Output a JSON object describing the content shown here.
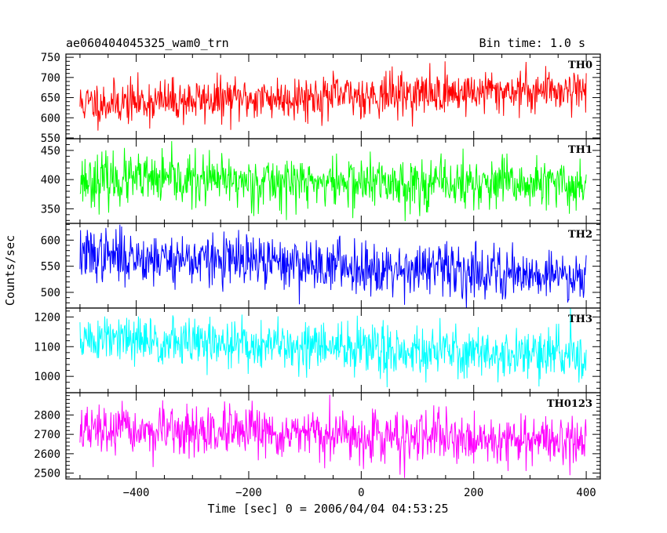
{
  "title": "ae060404045325_wam0_trn",
  "bin_time": "Bin time: 1.0 s",
  "ylabel": "Counts/sec",
  "xlabel": "Time [sec] 0 = 2006/04/04 04:53:25",
  "chart_data": {
    "type": "line",
    "x_range": [
      -500,
      400
    ],
    "xlim": [
      -525,
      425
    ],
    "x_ticks": [
      -400,
      -200,
      0,
      200,
      400
    ],
    "x_tick_labels": [
      "−400",
      "−200",
      "0",
      "200",
      "400"
    ],
    "grid": false,
    "panels": [
      {
        "name": "TH0",
        "color": "#ff0000",
        "ylim": [
          548,
          758
        ],
        "y_ticks": [
          550,
          600,
          650,
          700,
          750
        ],
        "start_mean": 635,
        "end_mean": 672,
        "noise": 27,
        "seed": 11
      },
      {
        "name": "TH1",
        "color": "#00ff00",
        "ylim": [
          325,
          470
        ],
        "y_ticks": [
          350,
          400,
          450
        ],
        "start_mean": 400,
        "end_mean": 390,
        "noise": 22,
        "seed": 23
      },
      {
        "name": "TH2",
        "color": "#0000ff",
        "ylim": [
          470,
          632
        ],
        "y_ticks": [
          500,
          550,
          600
        ],
        "start_mean": 572,
        "end_mean": 532,
        "noise": 25,
        "seed": 37
      },
      {
        "name": "TH3",
        "color": "#00ffff",
        "ylim": [
          945,
          1230
        ],
        "y_ticks": [
          1000,
          1100,
          1200
        ],
        "start_mean": 1125,
        "end_mean": 1068,
        "noise": 42,
        "seed": 51
      },
      {
        "name": "TH0123",
        "color": "#ff00ff",
        "ylim": [
          2470,
          2915
        ],
        "y_ticks": [
          2500,
          2600,
          2700,
          2800
        ],
        "start_mean": 2720,
        "end_mean": 2665,
        "noise": 62,
        "seed": 67
      }
    ]
  }
}
